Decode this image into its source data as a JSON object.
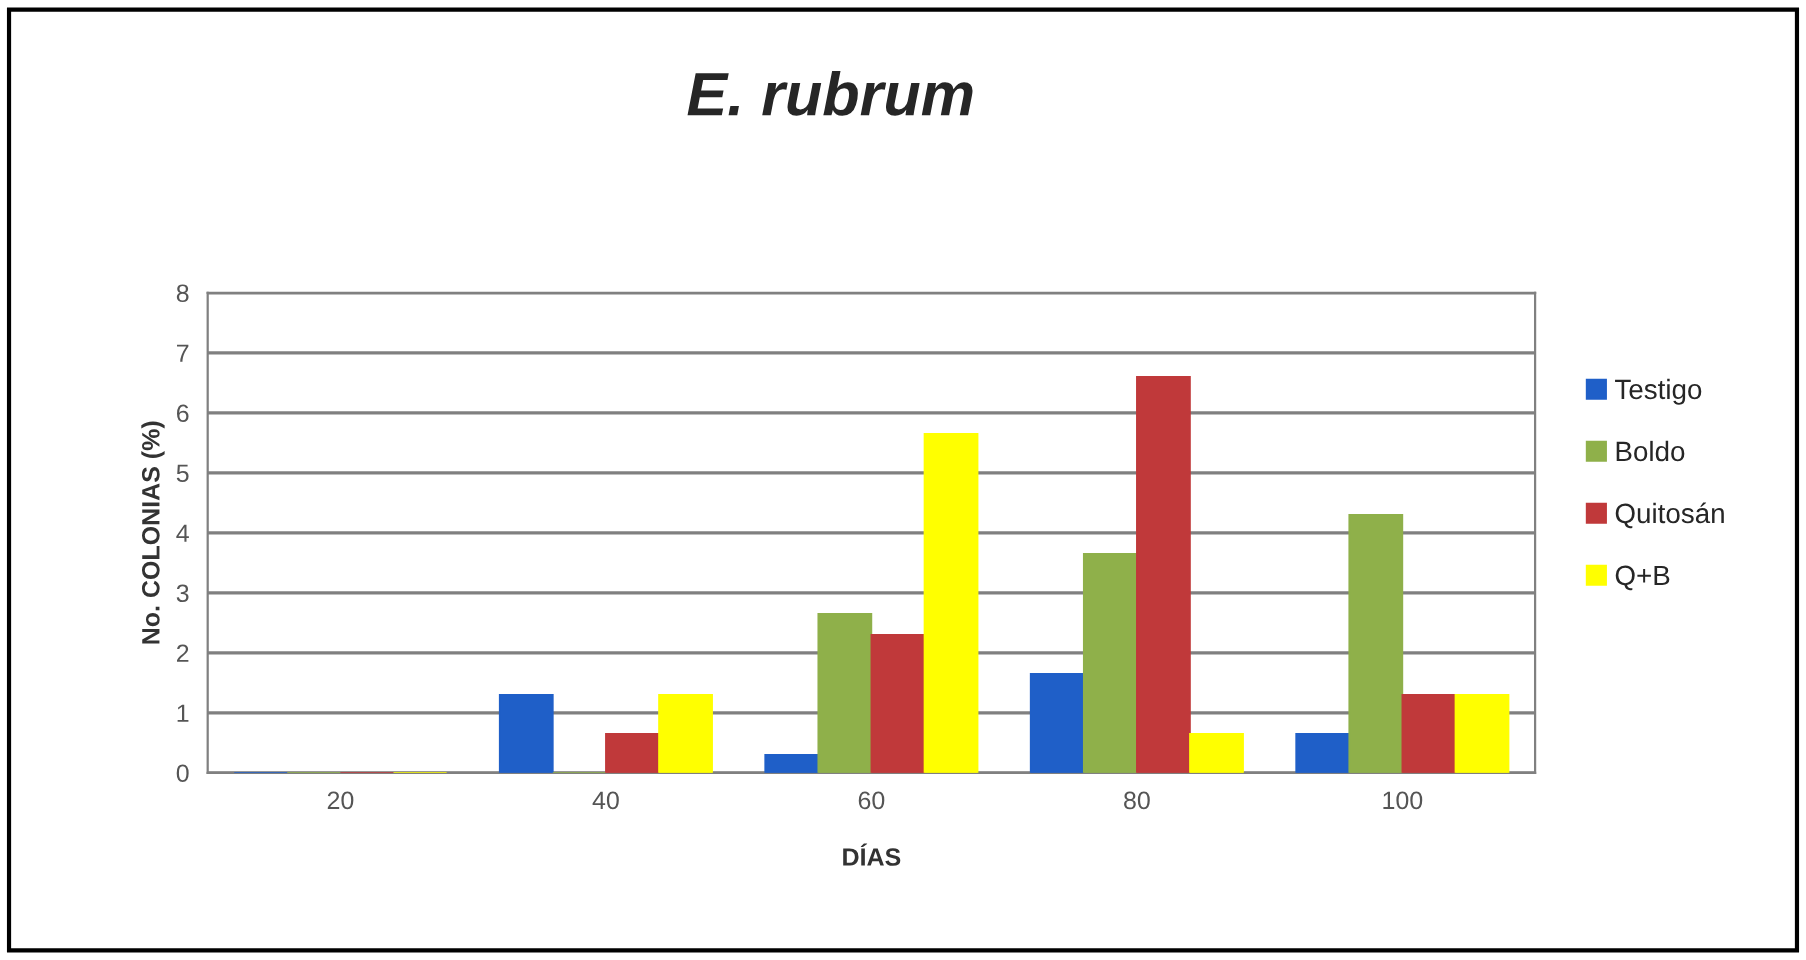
{
  "chart_data": {
    "type": "bar",
    "title": "E. rubrum",
    "xlabel": "DÍAS",
    "ylabel": "No. COLONIAS (%)",
    "categories": [
      "20",
      "40",
      "60",
      "80",
      "100"
    ],
    "series": [
      {
        "name": "Testigo",
        "color": "#1f5fc8",
        "values": [
          0,
          1.3,
          0.3,
          1.65,
          0.65
        ]
      },
      {
        "name": "Boldo",
        "color": "#8fb04a",
        "values": [
          0,
          0,
          2.65,
          3.65,
          4.3
        ]
      },
      {
        "name": "Quitosán",
        "color": "#c0393a",
        "values": [
          0,
          0.65,
          2.3,
          6.6,
          1.3
        ]
      },
      {
        "name": "Q+B",
        "color": "#ffff00",
        "values": [
          0,
          1.3,
          5.65,
          0.65,
          1.3
        ]
      }
    ],
    "ylim": [
      0,
      8
    ],
    "yticks": [
      0,
      1,
      2,
      3,
      4,
      5,
      6,
      7,
      8
    ],
    "grid": "y",
    "legend": "right"
  }
}
